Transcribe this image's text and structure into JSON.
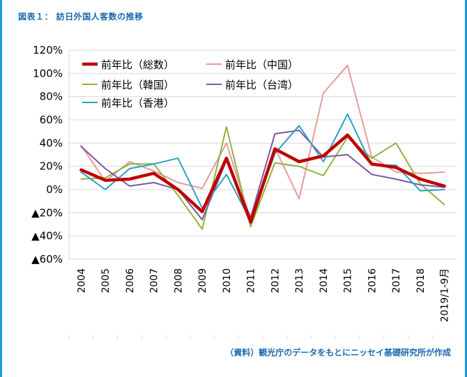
{
  "figure": {
    "title": "図表１： 訪日外国人客数の推移",
    "source": "（資料）観光庁のデータをもとにニッセイ基礎研究所が作成"
  },
  "colors": {
    "frame": "#1a9ad6",
    "title": "#1a6bb0",
    "total": "#c00000",
    "china": "#e69a9a",
    "korea": "#8fb33a",
    "taiwan": "#7a57a3",
    "hongkong": "#2aa0c7"
  },
  "chart_data": {
    "type": "line",
    "x": [
      "2004",
      "2005",
      "2006",
      "2007",
      "2008",
      "2009",
      "2010",
      "2011",
      "2012",
      "2013",
      "2014",
      "2015",
      "2016",
      "2017",
      "2018",
      "2019/1-9月"
    ],
    "ylim": [
      -60,
      120
    ],
    "yticks": [
      {
        "value": 120,
        "label": "120%"
      },
      {
        "value": 100,
        "label": "100%"
      },
      {
        "value": 80,
        "label": "80%"
      },
      {
        "value": 60,
        "label": "60%"
      },
      {
        "value": 40,
        "label": "40%"
      },
      {
        "value": 20,
        "label": "20%"
      },
      {
        "value": 0,
        "label": "0%"
      },
      {
        "value": -20,
        "label": "▲20%"
      },
      {
        "value": -40,
        "label": "▲40%"
      },
      {
        "value": -60,
        "label": "▲60%"
      }
    ],
    "grid": "horizontal",
    "legend_position": "top-left-inside",
    "series": [
      {
        "key": "china",
        "name": "前年比（中国）",
        "color": "#e69a9a",
        "width": 2,
        "values": [
          38,
          7,
          24,
          16,
          6,
          1,
          40,
          -26,
          36,
          -8,
          83,
          107,
          28,
          15,
          14,
          15
        ]
      },
      {
        "key": "korea",
        "name": "前年比（韓国）",
        "color": "#8fb33a",
        "width": 2,
        "values": [
          9,
          10,
          22,
          22,
          -5,
          -34,
          54,
          -32,
          23,
          20,
          12,
          45,
          27,
          40,
          5,
          -13
        ]
      },
      {
        "key": "taiwan",
        "name": "前年比（台湾）",
        "color": "#7a57a3",
        "width": 2,
        "values": [
          37,
          18,
          3,
          6,
          0,
          -26,
          25,
          -24,
          48,
          51,
          28,
          30,
          13,
          9,
          4,
          2
        ]
      },
      {
        "key": "hongkong",
        "name": "前年比（香港）",
        "color": "#2aa0c7",
        "width": 2,
        "values": [
          15,
          0,
          18,
          22,
          27,
          -16,
          13,
          -27,
          31,
          55,
          24,
          65,
          21,
          21,
          -1,
          0
        ]
      },
      {
        "key": "total",
        "name": "前年比（総数）",
        "color": "#c00000",
        "width": 4.5,
        "values": [
          17,
          8,
          9,
          14,
          0,
          -19,
          27,
          -28,
          35,
          24,
          29,
          47,
          22,
          19,
          9,
          3
        ]
      }
    ],
    "legend": [
      {
        "key": "total",
        "label": "前年比（総数）",
        "col": 0,
        "row": 0
      },
      {
        "key": "china",
        "label": "前年比（中国）",
        "col": 1,
        "row": 0
      },
      {
        "key": "korea",
        "label": "前年比（韓国）",
        "col": 0,
        "row": 1
      },
      {
        "key": "taiwan",
        "label": "前年比（台湾）",
        "col": 1,
        "row": 1
      },
      {
        "key": "hongkong",
        "label": "前年比（香港）",
        "col": 0,
        "row": 2
      }
    ]
  }
}
